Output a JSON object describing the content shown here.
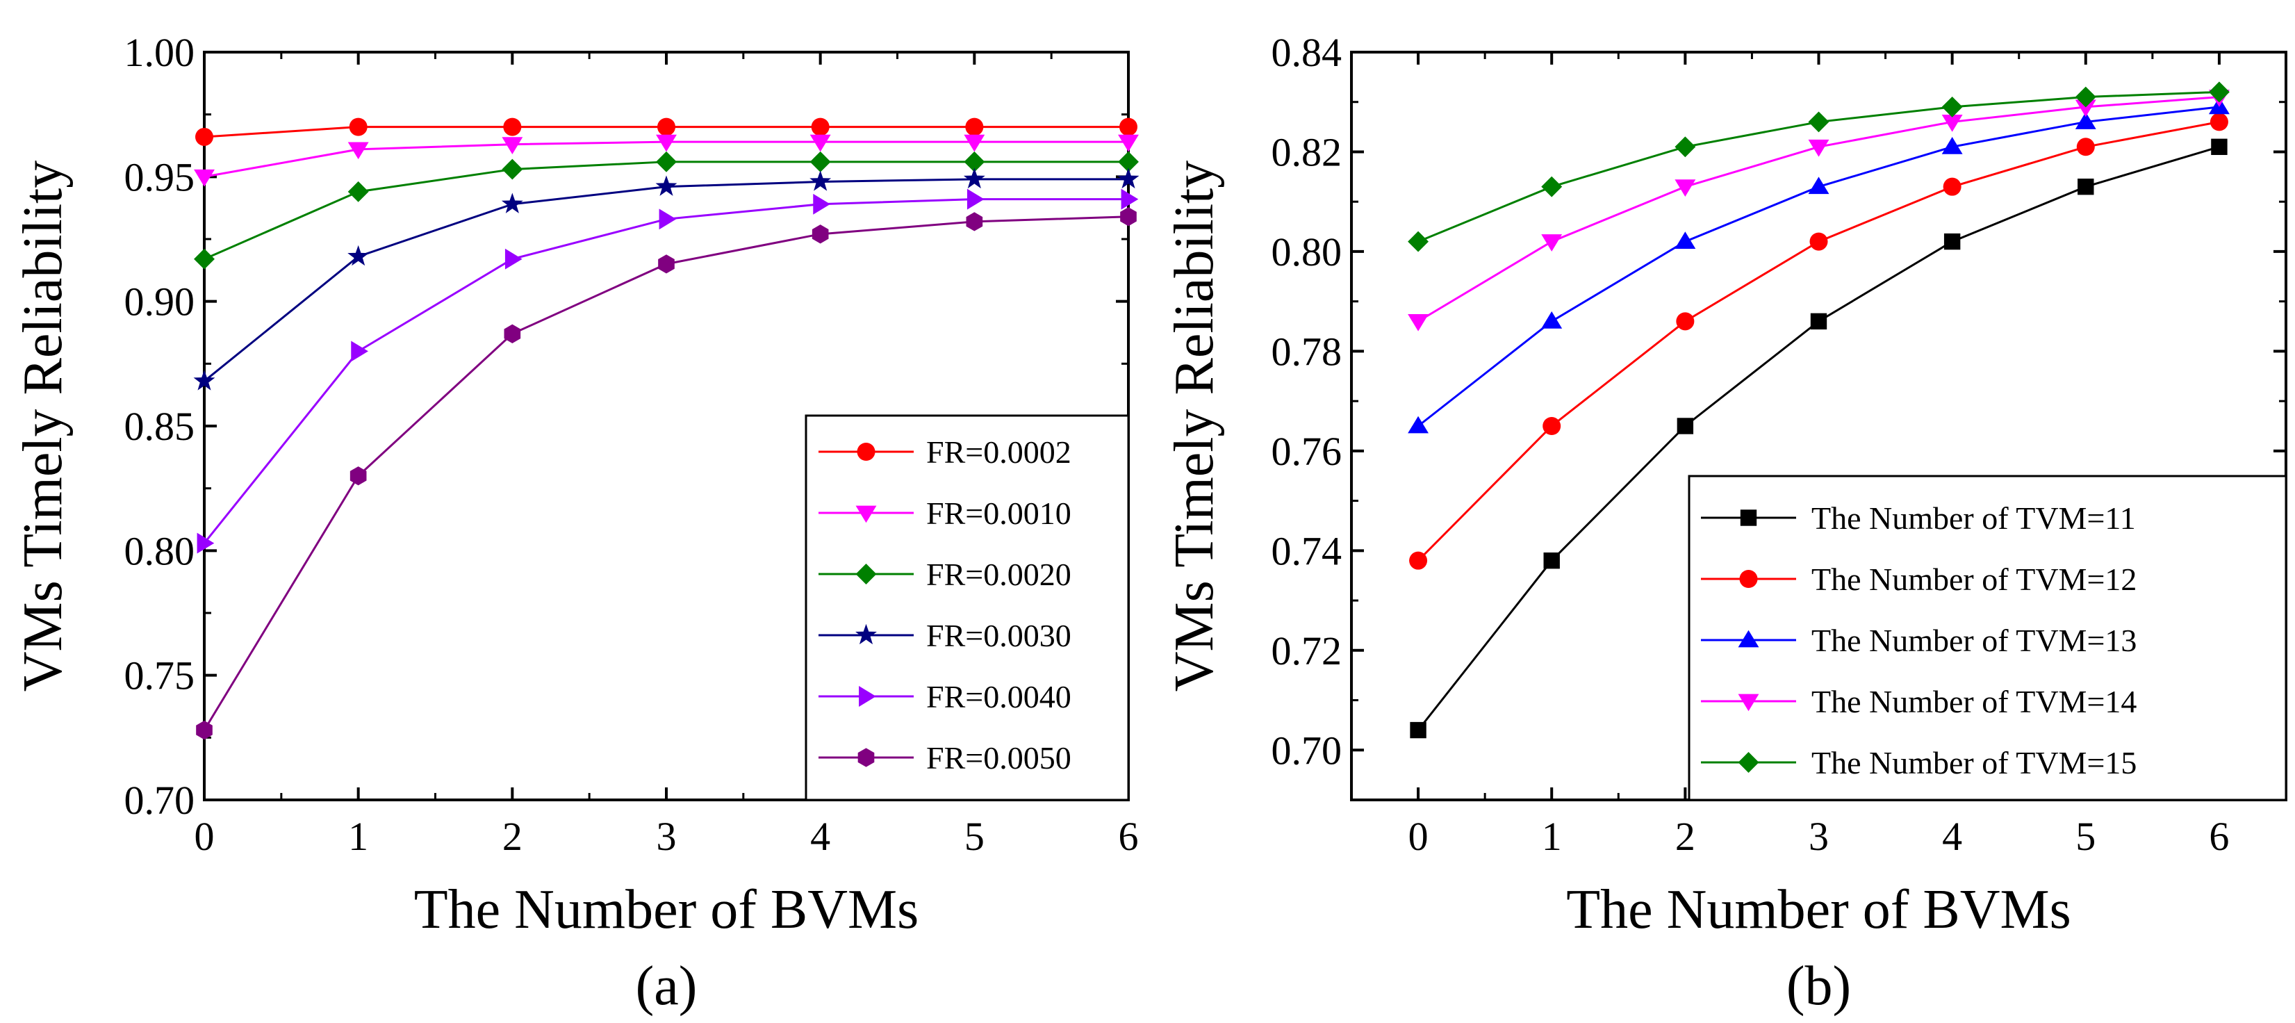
{
  "chart_data": [
    {
      "type": "line",
      "panel_label": "(a)",
      "title": "",
      "xlabel": "The Number of BVMs",
      "ylabel": "VMs Timely Reliability",
      "x": [
        0,
        1,
        2,
        3,
        4,
        5,
        6
      ],
      "xlim": [
        0,
        6
      ],
      "ylim": [
        0.7,
        1.0
      ],
      "x_ticks": [
        "0",
        "1",
        "2",
        "3",
        "4",
        "5",
        "6"
      ],
      "y_ticks": [
        "0.70",
        "0.75",
        "0.80",
        "0.85",
        "0.90",
        "0.95",
        "1.00"
      ],
      "grid": false,
      "legend_position": "bottom-right",
      "series": [
        {
          "name": "FR=0.0002",
          "color": "#ff0000",
          "marker": "circle",
          "values": [
            0.966,
            0.97,
            0.97,
            0.97,
            0.97,
            0.97,
            0.97
          ]
        },
        {
          "name": "FR=0.0010",
          "color": "#ff00ff",
          "marker": "triangle-down",
          "values": [
            0.95,
            0.961,
            0.963,
            0.964,
            0.964,
            0.964,
            0.964
          ]
        },
        {
          "name": "FR=0.0020",
          "color": "#008000",
          "marker": "diamond",
          "values": [
            0.917,
            0.944,
            0.953,
            0.956,
            0.956,
            0.956,
            0.956
          ]
        },
        {
          "name": "FR=0.0030",
          "color": "#000080",
          "marker": "star",
          "values": [
            0.868,
            0.918,
            0.939,
            0.946,
            0.948,
            0.949,
            0.949
          ]
        },
        {
          "name": "FR=0.0040",
          "color": "#9900ff",
          "marker": "triangle-right",
          "values": [
            0.803,
            0.88,
            0.917,
            0.933,
            0.939,
            0.941,
            0.941
          ]
        },
        {
          "name": "FR=0.0050",
          "color": "#800080",
          "marker": "hexagon",
          "values": [
            0.728,
            0.83,
            0.887,
            0.915,
            0.927,
            0.932,
            0.934
          ]
        }
      ]
    },
    {
      "type": "line",
      "panel_label": "(b)",
      "title": "",
      "xlabel": "The Number of BVMs",
      "ylabel": "VMs Timely Reliability",
      "x": [
        0,
        1,
        2,
        3,
        4,
        5,
        6
      ],
      "xlim": [
        -0.5,
        6.5
      ],
      "ylim": [
        0.69,
        0.84
      ],
      "x_ticks": [
        "0",
        "1",
        "2",
        "3",
        "4",
        "5",
        "6"
      ],
      "y_ticks": [
        "0.70",
        "0.72",
        "0.74",
        "0.76",
        "0.78",
        "0.80",
        "0.82",
        "0.84"
      ],
      "grid": false,
      "legend_position": "bottom-right",
      "series": [
        {
          "name": "The Number of TVM=11",
          "color": "#000000",
          "marker": "square",
          "values": [
            0.704,
            0.738,
            0.765,
            0.786,
            0.802,
            0.813,
            0.821
          ]
        },
        {
          "name": "The Number of TVM=12",
          "color": "#ff0000",
          "marker": "circle",
          "values": [
            0.738,
            0.765,
            0.786,
            0.802,
            0.813,
            0.821,
            0.826
          ]
        },
        {
          "name": "The Number of TVM=13",
          "color": "#0000ff",
          "marker": "triangle-up",
          "values": [
            0.765,
            0.786,
            0.802,
            0.813,
            0.821,
            0.826,
            0.829
          ]
        },
        {
          "name": "The Number of TVM=14",
          "color": "#ff00ff",
          "marker": "triangle-down",
          "values": [
            0.786,
            0.802,
            0.813,
            0.821,
            0.826,
            0.829,
            0.831
          ]
        },
        {
          "name": "The Number of TVM=15",
          "color": "#008000",
          "marker": "diamond",
          "values": [
            0.802,
            0.813,
            0.821,
            0.826,
            0.829,
            0.831,
            0.832
          ]
        }
      ]
    }
  ]
}
